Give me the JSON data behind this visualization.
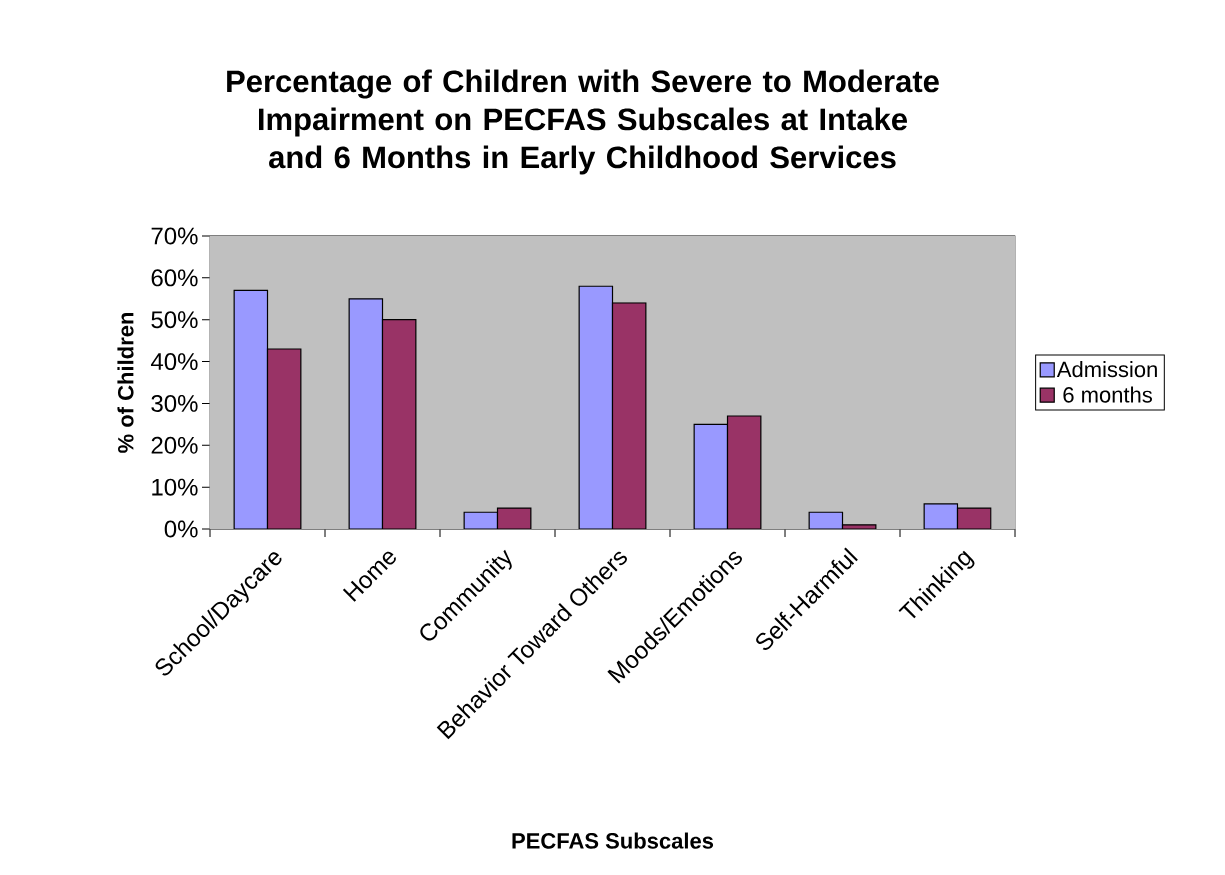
{
  "chart_data": {
    "type": "bar",
    "title": "Percentage of Children with Severe to Moderate Impairment on PECFAS Subscales at Intake and 6 Months in Early Childhood Services",
    "xlabel": "PECFAS Subscales",
    "ylabel": "% of Children",
    "categories": [
      "School/Daycare",
      "Home",
      "Community",
      "Behavior Toward Others",
      "Moods/Emotions",
      "Self-Harmful",
      "Thinking"
    ],
    "series": [
      {
        "name": "Admission",
        "color": "#9999ff",
        "values": [
          57,
          55,
          4,
          58,
          25,
          4,
          6
        ]
      },
      {
        "name": "6 months",
        "color": "#993366",
        "values": [
          43,
          50,
          5,
          54,
          27,
          1,
          5
        ]
      }
    ],
    "ylim": [
      0,
      70
    ],
    "yticks": [
      {
        "value": 0,
        "label": "0%"
      },
      {
        "value": 10,
        "label": "10%"
      },
      {
        "value": 20,
        "label": "20%"
      },
      {
        "value": 30,
        "label": "30%"
      },
      {
        "value": 40,
        "label": "40%"
      },
      {
        "value": 50,
        "label": "50%"
      },
      {
        "value": 60,
        "label": "60%"
      },
      {
        "value": 70,
        "label": "70%"
      }
    ],
    "grid": "y",
    "legend": "right"
  }
}
